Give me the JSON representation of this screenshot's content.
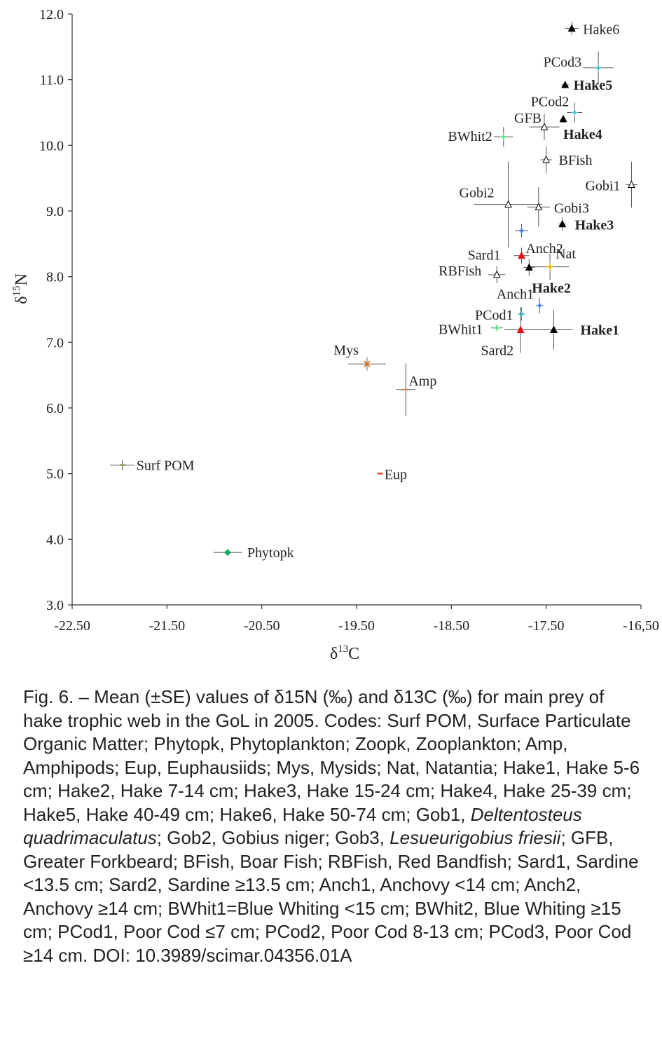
{
  "chart_data": {
    "type": "scatter",
    "xlabel_main": "δ",
    "xlabel_sup": "13",
    "xlabel_tail": "C",
    "ylabel_main": "δ",
    "ylabel_sup": "15",
    "ylabel_tail": "N",
    "xlim": [
      -22.5,
      -16.5
    ],
    "ylim": [
      3.0,
      12.0
    ],
    "x_tick_values": [
      -22.5,
      -21.5,
      -20.5,
      -19.5,
      -18.5,
      -17.5,
      -16.5
    ],
    "x_tick_labels": [
      "-22.50",
      "-21.50",
      "-20.50",
      "-19.50",
      "-18.50",
      "-17.50",
      "-16,50"
    ],
    "y_tick_values": [
      3,
      4,
      5,
      6,
      7,
      8,
      9,
      10,
      11,
      12
    ],
    "y_tick_labels": [
      "3.0",
      "4.0",
      "5.0",
      "6.0",
      "7.0",
      "8.0",
      "9.0",
      "10.0",
      "11.0",
      "12.0"
    ],
    "points": [
      {
        "label": "Hake6",
        "x": -17.23,
        "y": 11.78,
        "xe": 0.07,
        "ye": 0.1,
        "marker": "triangle",
        "color": "#000000",
        "bold": false
      },
      {
        "label": "PCod3",
        "x": -16.95,
        "y": 11.18,
        "xe": 0.16,
        "ye": 0.25,
        "marker": "star",
        "color": "#4fc3d1",
        "bold": false
      },
      {
        "label": "Hake5",
        "x": -17.3,
        "y": 10.92,
        "xe": 0.04,
        "ye": 0.05,
        "marker": "triangle",
        "color": "#000000",
        "bold": true
      },
      {
        "label": "PCod2",
        "x": -17.2,
        "y": 10.5,
        "xe": 0.08,
        "ye": 0.15,
        "marker": "star",
        "color": "#4fc3d1",
        "bold": false
      },
      {
        "label": "GFB",
        "x": -17.52,
        "y": 10.28,
        "xe": 0.16,
        "ye": 0.2,
        "marker": "open-triangle",
        "color": "#000000",
        "bold": false
      },
      {
        "label": "Hake4",
        "x": -17.32,
        "y": 10.4,
        "xe": 0.03,
        "ye": 0.06,
        "marker": "triangle",
        "color": "#000000",
        "bold": true
      },
      {
        "label": "BWhit2",
        "x": -17.95,
        "y": 10.13,
        "xe": 0.1,
        "ye": 0.15,
        "marker": "star",
        "color": "#66e08a",
        "bold": false
      },
      {
        "label": "BFish",
        "x": -17.5,
        "y": 9.78,
        "xe": 0.06,
        "ye": 0.2,
        "marker": "open-triangle",
        "color": "#000000",
        "bold": false
      },
      {
        "label": "Gobi1",
        "x": -16.6,
        "y": 9.4,
        "xe": 0.06,
        "ye": 0.35,
        "marker": "open-triangle",
        "color": "#000000",
        "bold": false
      },
      {
        "label": "Gobi2",
        "x": -17.9,
        "y": 9.1,
        "xe": 0.36,
        "ye": 0.65,
        "marker": "open-triangle",
        "color": "#000000",
        "bold": false
      },
      {
        "label": "Gobi3",
        "x": -17.58,
        "y": 9.06,
        "xe": 0.12,
        "ye": 0.3,
        "marker": "open-triangle",
        "color": "#000000",
        "bold": false
      },
      {
        "label": "Hake3",
        "x": -17.33,
        "y": 8.8,
        "xe": 0.04,
        "ye": 0.1,
        "marker": "triangle",
        "color": "#000000",
        "bold": true
      },
      {
        "label": "Anch2",
        "x": -17.76,
        "y": 8.7,
        "xe": 0.07,
        "ye": 0.1,
        "marker": "star",
        "color": "#4a7fd6",
        "bold": false
      },
      {
        "label": "Sard1",
        "x": -17.76,
        "y": 8.32,
        "xe": 0.08,
        "ye": 0.12,
        "marker": "triangle",
        "color": "#e8101a",
        "bold": false
      },
      {
        "label": "Nat",
        "x": -17.46,
        "y": 8.15,
        "xe": 0.2,
        "ye": 0.2,
        "marker": "star",
        "color": "#f5b800",
        "bold": false
      },
      {
        "label": "Hake2",
        "x": -17.68,
        "y": 8.14,
        "xe": 0.06,
        "ye": 0.13,
        "marker": "triangle",
        "color": "#000000",
        "bold": true
      },
      {
        "label": "RBFish",
        "x": -18.02,
        "y": 8.03,
        "xe": 0.09,
        "ye": 0.13,
        "marker": "open-triangle",
        "color": "#000000",
        "bold": false
      },
      {
        "label": "Anch1",
        "x": -17.57,
        "y": 7.56,
        "xe": 0.03,
        "ye": 0.12,
        "marker": "star",
        "color": "#4a7fd6",
        "bold": false
      },
      {
        "label": "PCod1",
        "x": -17.76,
        "y": 7.43,
        "xe": 0.04,
        "ye": 0.1,
        "marker": "star",
        "color": "#4fc3d1",
        "bold": false
      },
      {
        "label": "BWhit1",
        "x": -18.02,
        "y": 7.22,
        "xe": 0.06,
        "ye": 0.04,
        "marker": "star",
        "color": "#66e08a",
        "bold": false
      },
      {
        "label": "Sard2",
        "x": -17.77,
        "y": 7.19,
        "xe": 0.17,
        "ye": 0.35,
        "marker": "triangle",
        "color": "#e8101a",
        "bold": false
      },
      {
        "label": "Hake1",
        "x": -17.42,
        "y": 7.19,
        "xe": 0.2,
        "ye": 0.3,
        "marker": "triangle",
        "color": "#000000",
        "bold": true
      },
      {
        "label": "Mys",
        "x": -19.39,
        "y": 6.67,
        "xe": 0.2,
        "ye": 0.1,
        "marker": "x",
        "color": "#e8701a",
        "bold": false
      },
      {
        "label": "Amp",
        "x": -18.98,
        "y": 6.28,
        "xe": 0.1,
        "ye": 0.4,
        "marker": "dash",
        "color": "#d88a60",
        "bold": false
      },
      {
        "label": "Surf POM",
        "x": -21.97,
        "y": 5.13,
        "xe": 0.13,
        "ye": 0.08,
        "marker": "dash",
        "color": "#8a9a4a",
        "bold": false
      },
      {
        "label": "Eup",
        "x": -19.25,
        "y": 5.0,
        "xe": 0.0,
        "ye": 0.0,
        "marker": "dash",
        "color": "#e8501a",
        "bold": false
      },
      {
        "label": "Phytopk",
        "x": -20.86,
        "y": 3.8,
        "xe": 0.15,
        "ye": 0.05,
        "marker": "diamond",
        "color": "#1aa860",
        "bold": false
      }
    ]
  },
  "caption": {
    "p1": "Fig. 6. – Mean (±SE) values of δ15N (‰) and δ13C (‰) for main prey of hake trophic web in the GoL in 2005. Codes: Surf POM, Surface Particulate Organic Matter; Phytopk, Phytoplankton; Zoopk, Zooplankton; Amp, Amphipods; Eup, Euphausiids; Mys, Mysids; Nat, Natantia; Hake1, Hake 5-6 cm; Hake2, Hake 7-14 cm; Hake3, Hake 15-24 cm; Hake4, Hake 25-39 cm; Hake5, Hake 40-49 cm; Hake6, Hake 50-74 cm; Gob1, ",
    "gob1_species": "Deltentosteus quadrimaculatus",
    "p2": "; Gob2, Gobius niger; Gob3, ",
    "gob3_species": "Lesueurigobius friesii",
    "p3": "; GFB, Greater Forkbeard; BFish, Boar Fish; RBFish, Red Bandfish; Sard1, Sardine <13.5 cm; Sard2, Sardine ≥13.5 cm; Anch1, Anchovy <14 cm; Anch2, Anchovy ≥14 cm; BWhit1=Blue Whiting <15 cm; BWhit2, Blue Whiting ≥15 cm; PCod1, Poor Cod ≤7 cm; PCod2, Poor Cod 8-13 cm; PCod3, Poor Cod ≥14 cm. DOI: 10.3989/scimar.04356.01A"
  }
}
